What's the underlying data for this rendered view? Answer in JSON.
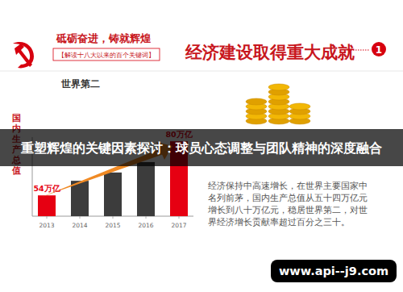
{
  "header": {
    "slogan": "砥砺奋进，铸就辉煌",
    "subtitle": "【解读十八大以来的百个关键词】"
  },
  "section": {
    "title": "经济建设取得重大成就",
    "number": "1"
  },
  "chart_data": {
    "type": "bar",
    "title": "世界第二",
    "y_label": "国内生产总值",
    "categories": [
      "2013",
      "2014",
      "2015",
      "2016",
      "2017"
    ],
    "values": [
      54,
      61,
      65,
      70,
      80
    ],
    "value_labels": [
      "54万亿",
      null,
      null,
      null,
      "80万亿"
    ],
    "colors": [
      "#e60012",
      "#3c3c3c",
      "#3c3c3c",
      "#3c3c3c",
      "#e60012"
    ],
    "ylim": [
      44,
      82
    ],
    "tick_labels": "x",
    "data_labels": true,
    "grid": false
  },
  "description": {
    "lines": [
      "经济保持中高速增长，在世界主要国家中",
      "名列前茅，国内生产总值从五十四万亿元",
      "增长到八十万亿元，稳居世界第二，对世",
      "界经济增长贡献率超过百分之三十。"
    ]
  },
  "banner": {
    "title": "重塑辉煌的关键因素探讨：球员心态调整与团队精神的深度融合"
  },
  "watermark": {
    "text": "www.api--j9.com"
  }
}
